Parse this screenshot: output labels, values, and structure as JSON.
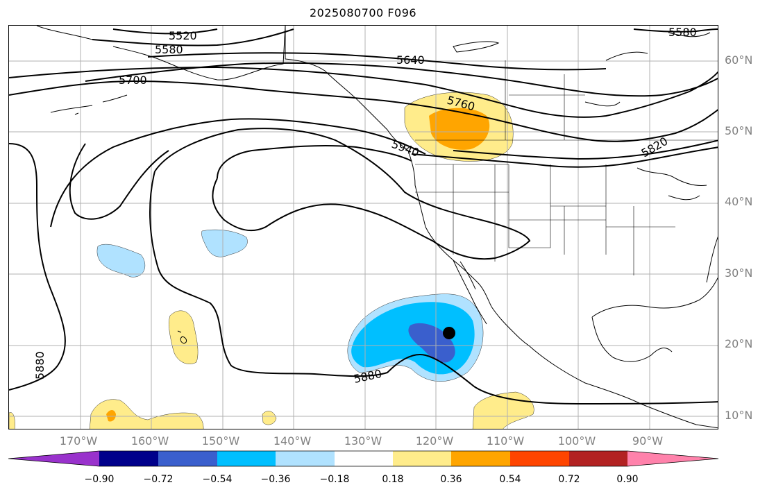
{
  "title": "2025080700 F096",
  "contour_labels": [
    "5520",
    "5580",
    "5640",
    "5700",
    "5760",
    "5820",
    "5880",
    "5940"
  ],
  "lat_labels": [
    "60°N",
    "50°N",
    "40°N",
    "30°N",
    "20°N",
    "10°N"
  ],
  "lon_labels": [
    "170°W",
    "160°W",
    "150°W",
    "140°W",
    "130°W",
    "120°W",
    "110°W",
    "100°W",
    "90°W"
  ],
  "colorbar": {
    "ticks": [
      "−0.90",
      "−0.72",
      "−0.54",
      "−0.36",
      "−0.18",
      "0.18",
      "0.36",
      "0.54",
      "0.72",
      "0.90"
    ],
    "colors": [
      "#9932cc",
      "#00008b",
      "#3a5fcd",
      "#00bfff",
      "#b0e2ff",
      "#ffffff",
      "#ffec8b",
      "#ffa500",
      "#ff4500",
      "#b22222",
      "#ff82ab"
    ]
  },
  "colors": {
    "contour": "#000000",
    "coast": "#000000",
    "grid": "#b0b0b0",
    "axis_text": "#808080"
  },
  "marker": {
    "name": "storm-center",
    "lon": -118,
    "lat": 21.5
  }
}
